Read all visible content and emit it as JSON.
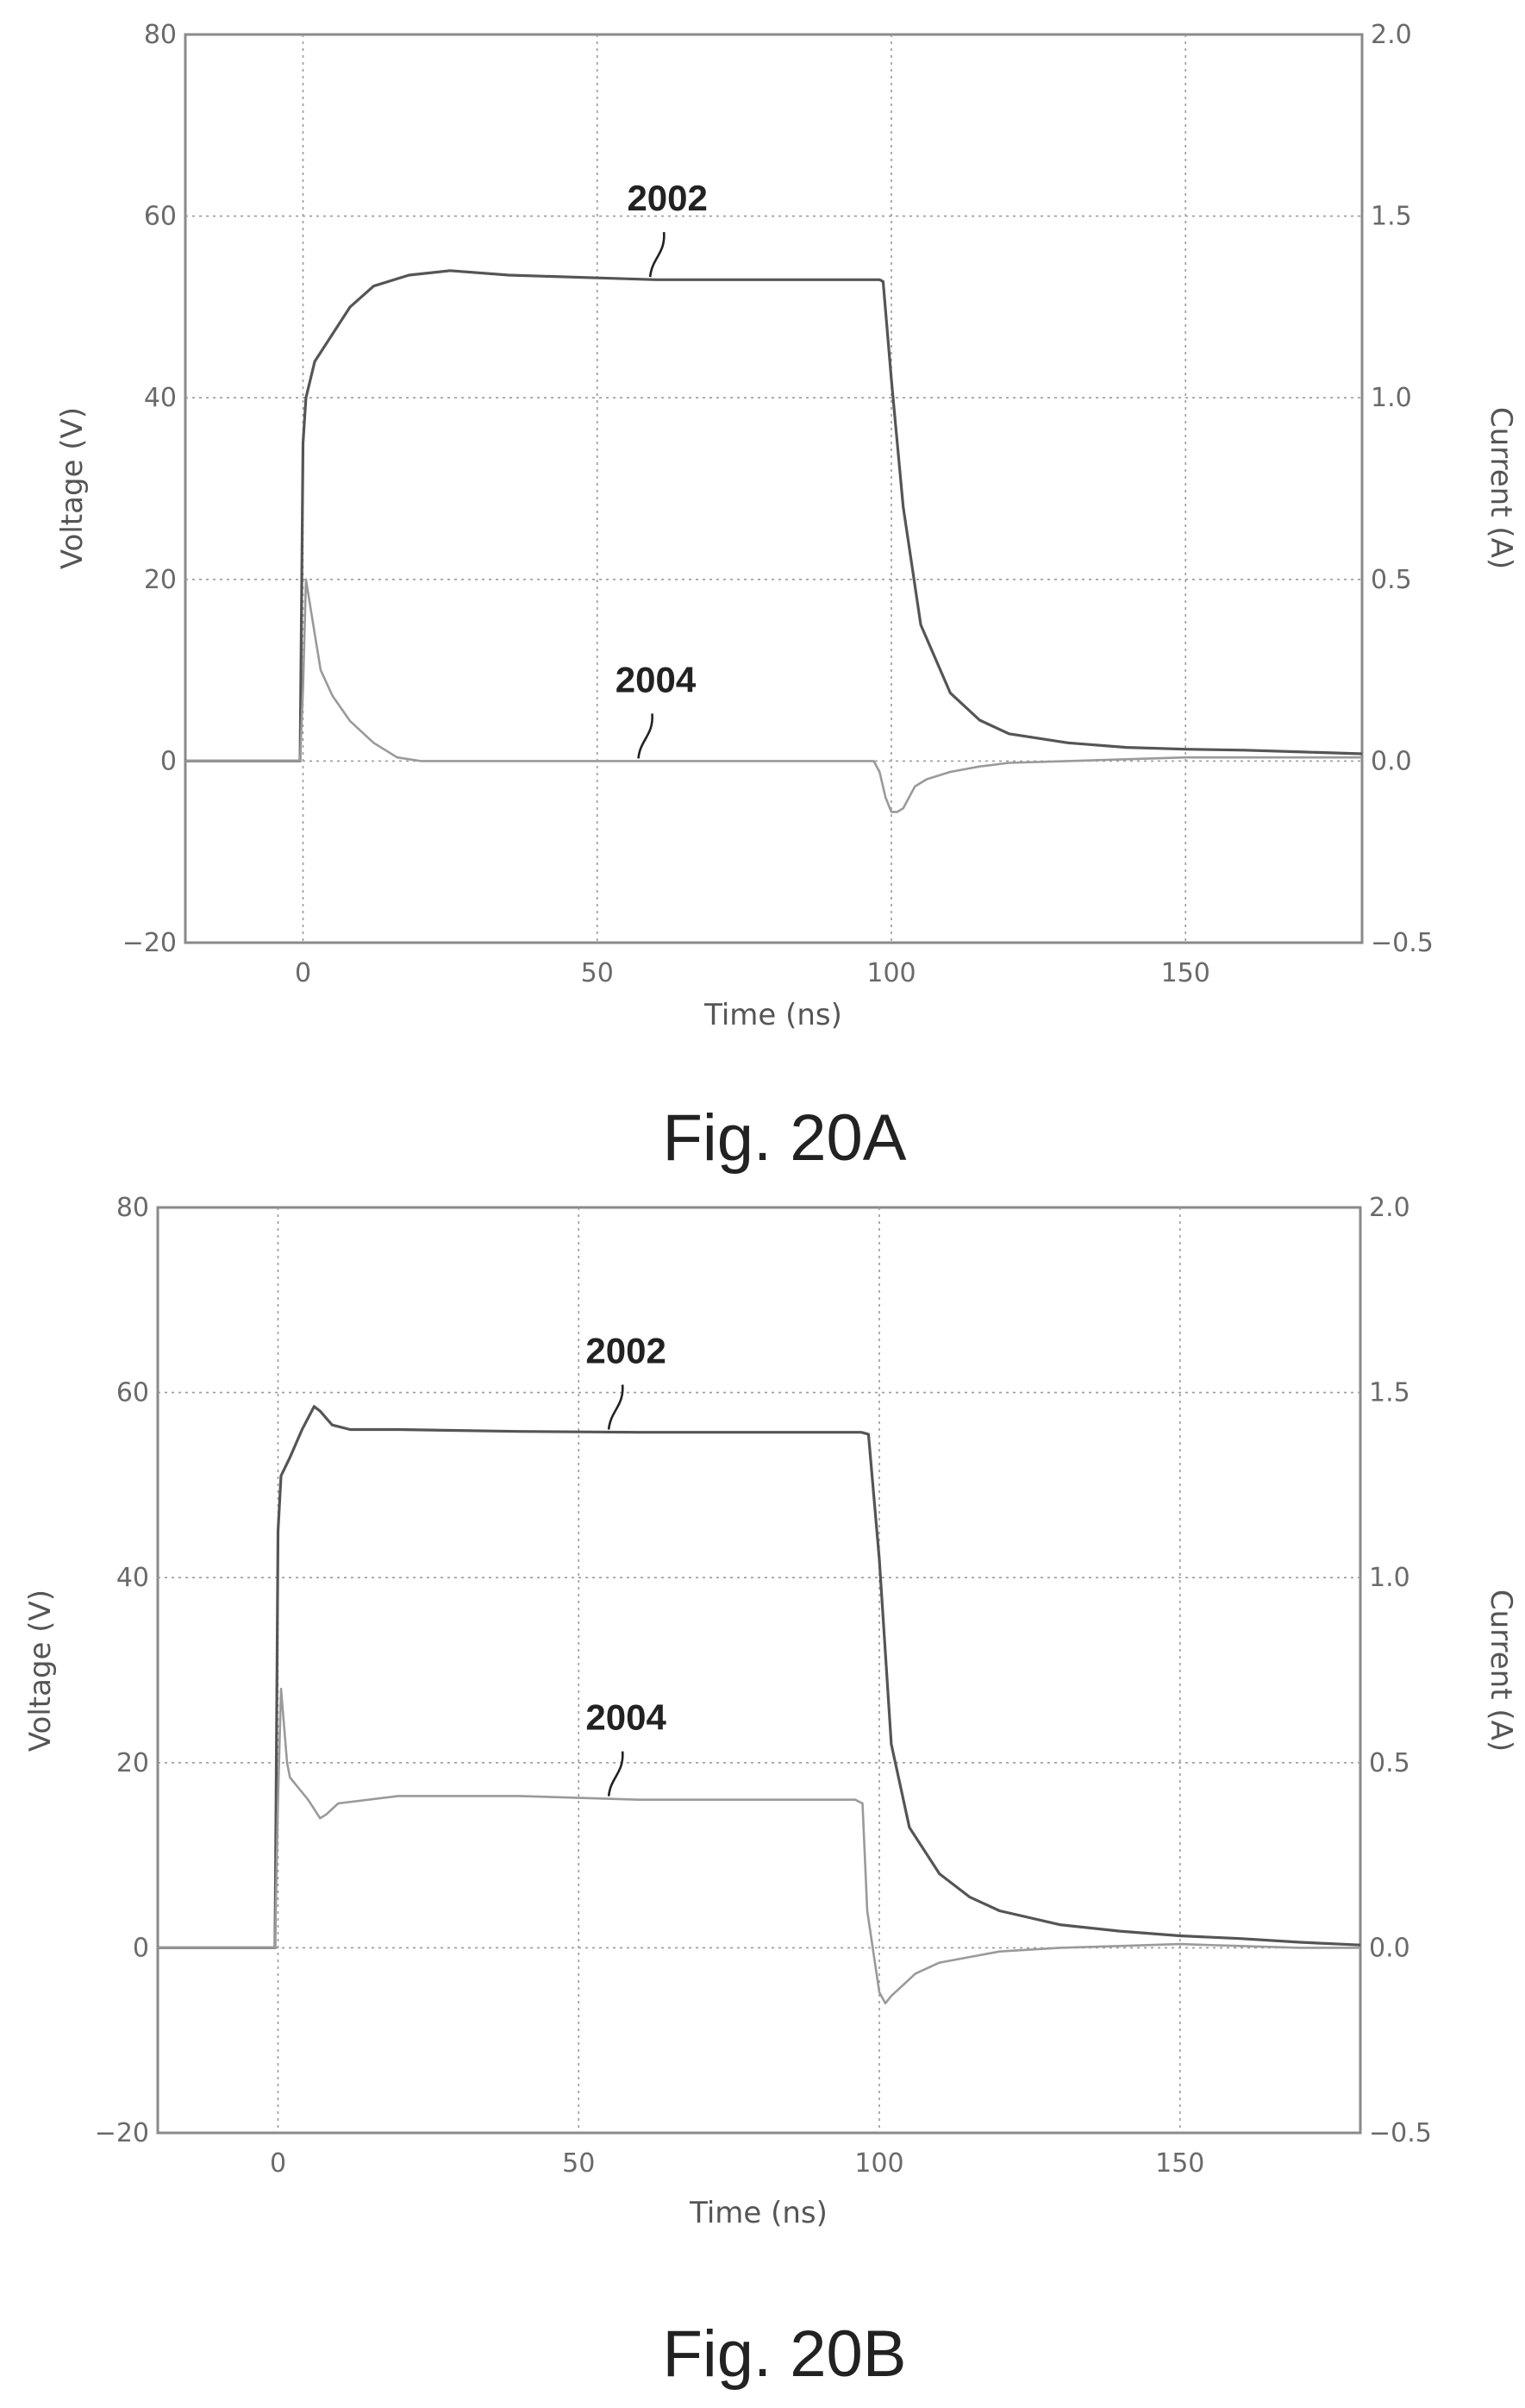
{
  "chart_data": [
    {
      "type": "line",
      "caption": "Fig. 20A",
      "xlabel": "Time (ns)",
      "ylabel": "Voltage (V)",
      "y2label": "Current (A)",
      "xlim": [
        -20,
        180
      ],
      "ylim": [
        -20,
        80
      ],
      "y2lim": [
        -0.5,
        2.0
      ],
      "xticks": [
        0,
        50,
        100,
        150
      ],
      "yticks": [
        -20,
        0,
        20,
        40,
        60,
        80
      ],
      "y2ticks": [
        "-0.5",
        "0.0",
        "0.5",
        "1.0",
        "1.5",
        "2.0"
      ],
      "ytick_labels": [
        "−20",
        "0",
        "20",
        "40",
        "60",
        "80"
      ],
      "y2tick_labels": [
        "−0.5",
        "0.0",
        "0.5",
        "1.0",
        "1.5",
        "2.0"
      ],
      "grid": true,
      "series": [
        {
          "name": "2002",
          "axis": "left",
          "x": [
            -20,
            -0.5,
            0,
            0.5,
            2,
            5,
            8,
            12,
            18,
            25,
            35,
            50,
            60,
            70,
            80,
            90,
            98,
            98.6,
            100,
            102,
            105,
            110,
            115,
            120,
            130,
            140,
            150,
            160,
            170,
            180
          ],
          "y": [
            0,
            0,
            35,
            40,
            44,
            47,
            50,
            52.3,
            53.5,
            54,
            53.5,
            53.2,
            53,
            53,
            53,
            53,
            53,
            52.8,
            42,
            28,
            15,
            7.5,
            4.5,
            3,
            2,
            1.5,
            1.3,
            1.2,
            1.0,
            0.8
          ]
        },
        {
          "name": "2004",
          "axis": "right",
          "x": [
            -20,
            -0.5,
            0,
            0.5,
            1,
            2,
            3,
            5,
            8,
            12,
            16,
            20,
            40,
            60,
            80,
            97,
            98,
            99,
            100,
            101,
            102,
            103,
            104,
            106,
            110,
            115,
            120,
            130,
            140,
            150,
            160,
            170,
            180
          ],
          "y": [
            0,
            0,
            0.2,
            0.5,
            0.45,
            0.35,
            0.25,
            0.18,
            0.11,
            0.05,
            0.01,
            0,
            0,
            0,
            0,
            0,
            -0.03,
            -0.1,
            -0.14,
            -0.14,
            -0.13,
            -0.1,
            -0.07,
            -0.05,
            -0.03,
            -0.015,
            -0.005,
            0,
            0.005,
            0.01,
            0.01,
            0.01,
            0.01
          ]
        }
      ],
      "annotations": [
        {
          "text": "2002",
          "series": "2002",
          "x": 59
        },
        {
          "text": "2004",
          "series": "2004",
          "x": 57
        }
      ]
    },
    {
      "type": "line",
      "caption": "Fig. 20B",
      "xlabel": "Time (ns)",
      "ylabel": "Voltage (V)",
      "y2label": "Current (A)",
      "xlim": [
        -20,
        180
      ],
      "ylim": [
        -20,
        80
      ],
      "y2lim": [
        -0.5,
        2.0
      ],
      "xticks": [
        0,
        50,
        100,
        150
      ],
      "yticks": [
        -20,
        0,
        20,
        40,
        60,
        80
      ],
      "y2ticks": [
        "-0.5",
        "0.0",
        "0.5",
        "1.0",
        "1.5",
        "2.0"
      ],
      "ytick_labels": [
        "−20",
        "0",
        "20",
        "40",
        "60",
        "80"
      ],
      "y2tick_labels": [
        "−0.5",
        "0.0",
        "0.5",
        "1.0",
        "1.5",
        "2.0"
      ],
      "grid": true,
      "series": [
        {
          "name": "2002",
          "axis": "left",
          "x": [
            -20,
            -0.5,
            0,
            0.5,
            2,
            4,
            6,
            7,
            9,
            12,
            20,
            40,
            60,
            80,
            97,
            98.2,
            100,
            102,
            105,
            110,
            115,
            120,
            130,
            140,
            150,
            160,
            170,
            180
          ],
          "y": [
            0,
            0,
            45,
            51,
            53,
            56,
            58.5,
            58,
            56.5,
            56,
            56,
            55.8,
            55.7,
            55.7,
            55.7,
            55.5,
            42,
            22,
            13,
            8,
            5.5,
            4,
            2.5,
            1.8,
            1.3,
            1.0,
            0.6,
            0.3
          ]
        },
        {
          "name": "2004",
          "axis": "right",
          "x": [
            -20,
            -0.5,
            0,
            0.5,
            1,
            1.5,
            2,
            3,
            5,
            7,
            8,
            10,
            20,
            40,
            60,
            80,
            96,
            97.2,
            98,
            100,
            101,
            102,
            104,
            106,
            110,
            120,
            130,
            140,
            150,
            160,
            170,
            180
          ],
          "y": [
            0,
            0,
            0.4,
            0.7,
            0.6,
            0.5,
            0.46,
            0.44,
            0.4,
            0.35,
            0.36,
            0.39,
            0.41,
            0.41,
            0.4,
            0.4,
            0.4,
            0.39,
            0.1,
            -0.12,
            -0.15,
            -0.13,
            -0.1,
            -0.07,
            -0.04,
            -0.01,
            0,
            0.005,
            0.01,
            0.005,
            0,
            0
          ]
        }
      ],
      "annotations": [
        {
          "text": "2002",
          "series": "2002",
          "x": 55
        },
        {
          "text": "2004",
          "series": "2004",
          "x": 55
        }
      ]
    }
  ]
}
